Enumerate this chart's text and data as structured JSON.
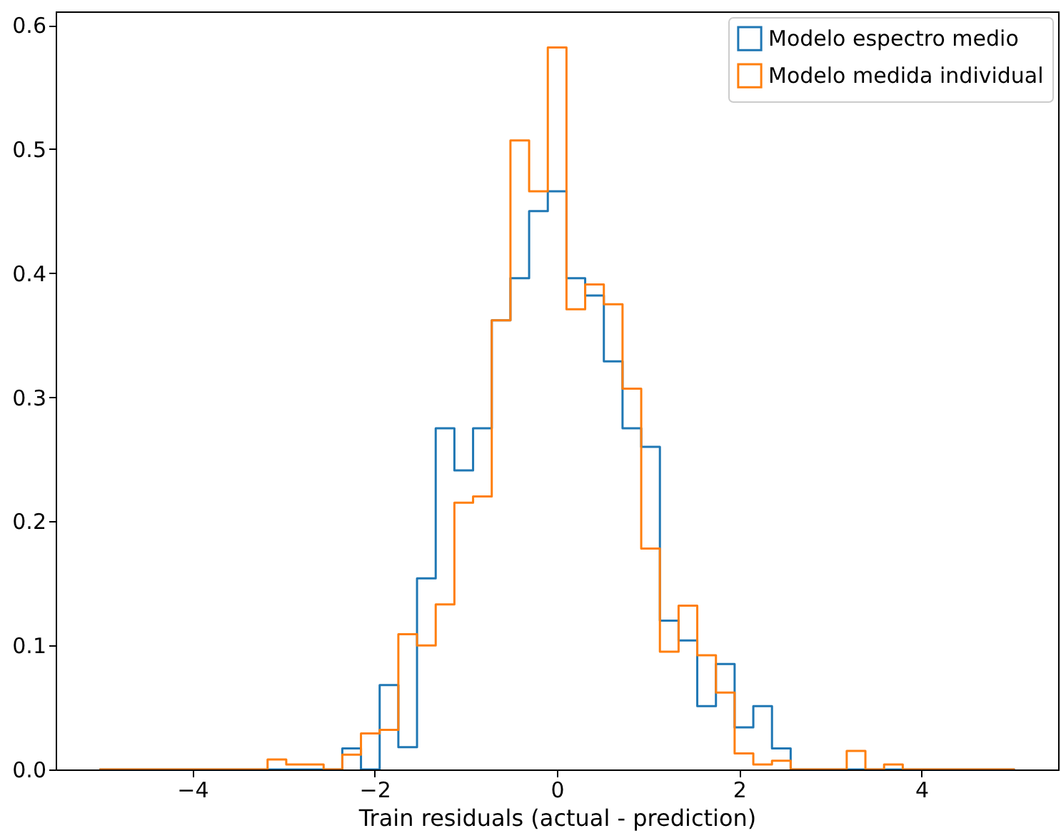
{
  "chart_data": {
    "type": "histogram",
    "xlabel": "Train residuals (actual - prediction)",
    "bins": [
      -5.02,
      -4.815,
      -4.61,
      -4.405,
      -4.2,
      -3.995,
      -3.79,
      -3.585,
      -3.38,
      -3.175,
      -2.97,
      -2.765,
      -2.56,
      -2.355,
      -2.15,
      -1.945,
      -1.74,
      -1.535,
      -1.33,
      -1.125,
      -0.92,
      -0.715,
      -0.51,
      -0.305,
      -0.1,
      0.105,
      0.31,
      0.515,
      0.72,
      0.925,
      1.13,
      1.335,
      1.54,
      1.745,
      1.95,
      2.155,
      2.36,
      2.565,
      2.77,
      2.975,
      3.18,
      3.385,
      3.59,
      3.795,
      4.0,
      4.205,
      4.41,
      4.615,
      4.82,
      5.025
    ],
    "series": [
      {
        "name": "Modelo espectro medio",
        "color": "#1f77b4",
        "values": [
          0,
          0,
          0,
          0,
          0,
          0,
          0,
          0,
          0,
          0,
          0,
          0,
          0,
          0.017,
          0,
          0.068,
          0.018,
          0.154,
          0.275,
          0.241,
          0.275,
          0.362,
          0.396,
          0.45,
          0.466,
          0.396,
          0.382,
          0.329,
          0.275,
          0.26,
          0.12,
          0.104,
          0.051,
          0.085,
          0.034,
          0.051,
          0.017,
          0,
          0,
          0,
          0,
          0,
          0,
          0,
          0,
          0,
          0,
          0,
          0
        ]
      },
      {
        "name": "Modelo medida individual",
        "color": "#ff7f0e",
        "values": [
          0,
          0,
          0,
          0,
          0,
          0,
          0,
          0,
          0,
          0.008,
          0.004,
          0.004,
          0,
          0.012,
          0.029,
          0.032,
          0.109,
          0.1,
          0.133,
          0.215,
          0.22,
          0.362,
          0.507,
          0.466,
          0.582,
          0.371,
          0.391,
          0.375,
          0.307,
          0.178,
          0.095,
          0.132,
          0.092,
          0.062,
          0.013,
          0.004,
          0.007,
          0,
          0,
          0,
          0.015,
          0,
          0.004,
          0,
          0,
          0,
          0,
          0,
          0
        ]
      }
    ],
    "xlim": [
      -5.5,
      5.5
    ],
    "xticks": [
      {
        "value": -4,
        "label": "−4"
      },
      {
        "value": -2,
        "label": "−2"
      },
      0,
      2,
      4
    ],
    "ylim": [
      0,
      0.611
    ],
    "yticks": [
      {
        "value": 0,
        "label": "0.0"
      },
      0.1,
      0.2,
      0.3,
      0.4,
      0.5,
      0.6
    ],
    "grid": false,
    "legend": "top right",
    "line_style": "solid"
  }
}
